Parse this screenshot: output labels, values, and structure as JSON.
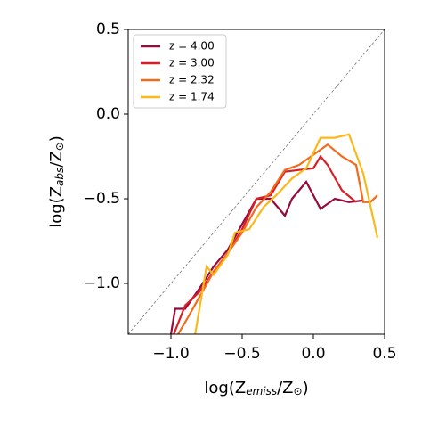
{
  "chart_data": {
    "type": "line",
    "xlabel": [
      "log(Z",
      "emiss",
      "/Z",
      "⊙",
      ")"
    ],
    "ylabel": [
      "log(Z",
      "abs",
      "/Z",
      "⊙",
      ")"
    ],
    "xlim": [
      -1.3,
      0.5
    ],
    "ylim": [
      -1.3,
      0.5
    ],
    "xticks": [
      {
        "value": -1.0,
        "label": "−1.0"
      },
      {
        "value": -0.5,
        "label": "−0.5"
      },
      {
        "value": 0.0,
        "label": "0.0"
      },
      0.5
    ],
    "yticks": [
      {
        "value": -1.0,
        "label": "−1.0"
      },
      {
        "value": -0.5,
        "label": "−0.5"
      },
      {
        "value": 0.0,
        "label": "0.0"
      },
      0.5
    ],
    "legend": "upper left",
    "series": [
      {
        "name": "z = 4.00",
        "color": "#960b3c",
        "x": [
          -1.0,
          -0.97,
          -0.9,
          -0.8,
          -0.7,
          -0.6,
          -0.5,
          -0.4,
          -0.3,
          -0.2,
          -0.15,
          -0.05,
          0.05,
          0.15,
          0.25,
          0.35
        ],
        "values": [
          -1.3,
          -1.15,
          -1.15,
          -1.03,
          -0.9,
          -0.8,
          -0.65,
          -0.5,
          -0.5,
          -0.6,
          -0.5,
          -0.4,
          -0.56,
          -0.5,
          -0.52,
          -0.51
        ]
      },
      {
        "name": "z = 3.00",
        "color": "#d81f26",
        "x": [
          -0.98,
          -0.9,
          -0.8,
          -0.7,
          -0.6,
          -0.5,
          -0.4,
          -0.3,
          -0.2,
          -0.1,
          0.0,
          0.05,
          0.1,
          0.2,
          0.3
        ],
        "values": [
          -1.3,
          -1.13,
          -1.05,
          -0.93,
          -0.82,
          -0.68,
          -0.5,
          -0.48,
          -0.34,
          -0.33,
          -0.32,
          -0.25,
          -0.3,
          -0.45,
          -0.52
        ]
      },
      {
        "name": "z = 2.32",
        "color": "#f26b1d",
        "x": [
          -0.95,
          -0.88,
          -0.8,
          -0.7,
          -0.6,
          -0.5,
          -0.4,
          -0.3,
          -0.2,
          -0.1,
          0.0,
          0.1,
          0.2,
          0.3,
          0.35,
          0.4,
          0.45
        ],
        "values": [
          -1.3,
          -1.2,
          -1.08,
          -0.93,
          -0.82,
          -0.7,
          -0.55,
          -0.46,
          -0.33,
          -0.3,
          -0.24,
          -0.18,
          -0.25,
          -0.3,
          -0.52,
          -0.52,
          -0.48
        ]
      },
      {
        "name": "z = 1.74",
        "color": "#fbb81a",
        "x": [
          -0.83,
          -0.75,
          -0.7,
          -0.6,
          -0.55,
          -0.45,
          -0.35,
          -0.25,
          -0.15,
          -0.05,
          0.05,
          0.15,
          0.25,
          0.35,
          0.45
        ],
        "values": [
          -1.3,
          -0.9,
          -0.95,
          -0.83,
          -0.7,
          -0.68,
          -0.55,
          -0.47,
          -0.38,
          -0.32,
          -0.14,
          -0.14,
          -0.12,
          -0.35,
          -0.73
        ]
      }
    ]
  }
}
